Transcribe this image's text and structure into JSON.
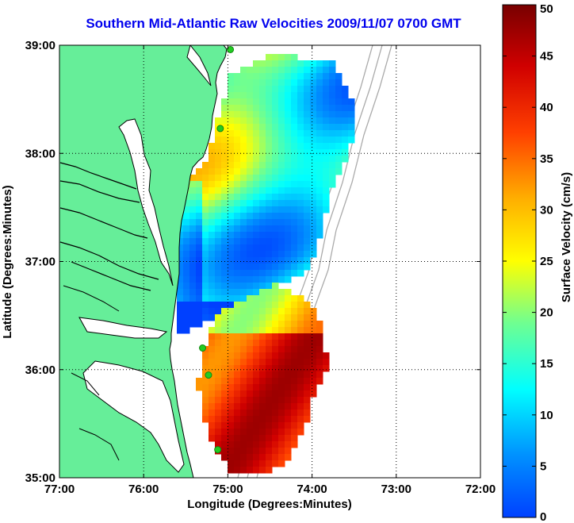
{
  "title": "Southern Mid-Atlantic Raw Velocities 2009/11/07 0700 GMT",
  "colors": {
    "title": "#0000ee",
    "land": "#66ee99",
    "coast": "#000000",
    "bathymetry": "#aaaaaa",
    "station": "#22cc22",
    "arrows": "#000000"
  },
  "map": {
    "xlabel": "Longitude (Degrees:Minutes)",
    "ylabel": "Latitude (Degrees:Minutes)",
    "lon_range": [
      -77,
      -72
    ],
    "lat_range": [
      35,
      39
    ],
    "x_ticks": [
      {
        "value": -77,
        "label": "77:00"
      },
      {
        "value": -76,
        "label": "76:00"
      },
      {
        "value": -75,
        "label": "75:00"
      },
      {
        "value": -74,
        "label": "74:00"
      },
      {
        "value": -73,
        "label": "73:00"
      },
      {
        "value": -72,
        "label": "72:00"
      }
    ],
    "y_ticks": [
      {
        "value": 35,
        "label": "35:00"
      },
      {
        "value": 36,
        "label": "36:00"
      },
      {
        "value": 37,
        "label": "37:00"
      },
      {
        "value": 38,
        "label": "38:00"
      },
      {
        "value": 39,
        "label": "39:00"
      }
    ],
    "grid": "dotted",
    "stations": [
      {
        "lon": -74.97,
        "lat": 38.96
      },
      {
        "lon": -75.09,
        "lat": 38.23
      },
      {
        "lon": -75.3,
        "lat": 36.2
      },
      {
        "lon": -75.23,
        "lat": 35.95
      },
      {
        "lon": -75.12,
        "lat": 35.26
      }
    ]
  },
  "colorbar": {
    "label": "Surface Velocity (cm/s)",
    "min": 0,
    "max": 50,
    "ticks": [
      {
        "value": 0,
        "label": "0"
      },
      {
        "value": 5,
        "label": "5"
      },
      {
        "value": 10,
        "label": "10"
      },
      {
        "value": 15,
        "label": "15"
      },
      {
        "value": 20,
        "label": "20"
      },
      {
        "value": 25,
        "label": "25"
      },
      {
        "value": 30,
        "label": "30"
      },
      {
        "value": 35,
        "label": "35"
      },
      {
        "value": 40,
        "label": "40"
      },
      {
        "value": 45,
        "label": "45"
      },
      {
        "value": 50,
        "label": "50"
      }
    ]
  }
}
